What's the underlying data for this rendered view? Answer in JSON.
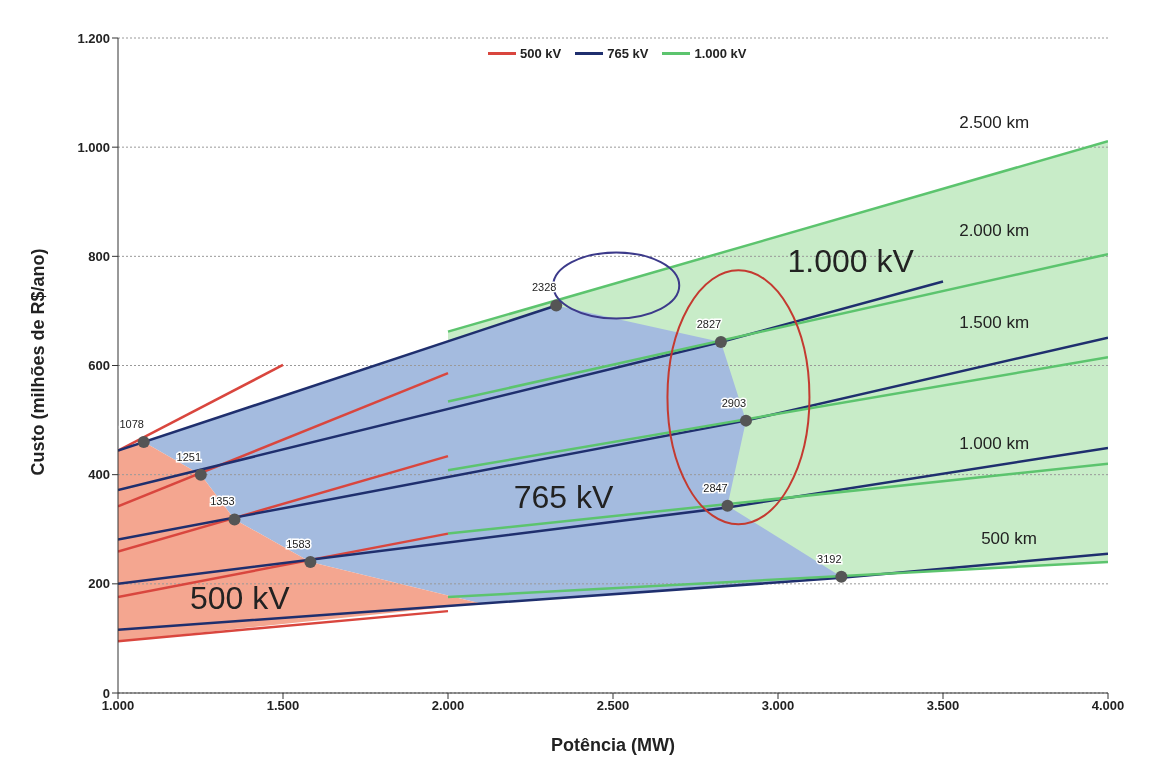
{
  "chart_data": {
    "type": "line",
    "xlabel": "Potência (MW)",
    "ylabel": "Custo (milhões de R$/ano)",
    "xlim": [
      1000,
      4000
    ],
    "xticks": [
      {
        "value": 1000,
        "label": "1.000"
      },
      {
        "value": 1500,
        "label": "1.500"
      },
      {
        "value": 2000,
        "label": "2.000"
      },
      {
        "value": 2500,
        "label": "2.500"
      },
      {
        "value": 3000,
        "label": "3.000"
      },
      {
        "value": 3500,
        "label": "3.500"
      },
      {
        "value": 4000,
        "label": "4.000"
      }
    ],
    "ylim": [
      0,
      1200
    ],
    "yticks": [
      0,
      200,
      400,
      600,
      800,
      {
        "value": 1000,
        "label": "1.000"
      },
      {
        "value": 1200,
        "label": "1.200"
      }
    ],
    "grid": "y",
    "legend": "top",
    "series": [
      {
        "name": "500 kV",
        "color": "#d9463e",
        "x": [
          1000,
          1500
        ],
        "values": [
          444,
          601
        ]
      },
      {
        "color": "#d9463e",
        "x": [
          1000,
          2000
        ],
        "values": [
          342,
          586
        ]
      },
      {
        "color": "#d9463e",
        "x": [
          1000,
          2000
        ],
        "values": [
          259,
          434
        ]
      },
      {
        "color": "#d9463e",
        "x": [
          1000,
          2000
        ],
        "values": [
          176,
          292
        ]
      },
      {
        "color": "#d9463e",
        "x": [
          1000,
          2000
        ],
        "values": [
          95,
          150
        ]
      },
      {
        "name": "765 kV",
        "color": "#1f2f6e",
        "x": [
          1000,
          2328
        ],
        "values": [
          444,
          710
        ]
      },
      {
        "color": "#1f2f6e",
        "x": [
          1000,
          2827,
          3500
        ],
        "values": [
          372,
          643,
          754
        ]
      },
      {
        "color": "#1f2f6e",
        "x": [
          1000,
          2903,
          4000
        ],
        "values": [
          281,
          499,
          651
        ]
      },
      {
        "color": "#1f2f6e",
        "x": [
          1000,
          2847,
          4000
        ],
        "values": [
          200,
          340,
          449
        ]
      },
      {
        "color": "#1f2f6e",
        "x": [
          1000,
          3192,
          4000
        ],
        "values": [
          116,
          211,
          255
        ]
      },
      {
        "name": "1.000 kV",
        "color": "#5cc46e",
        "x": [
          2000,
          4000
        ],
        "values": [
          662,
          1011
        ]
      },
      {
        "color": "#5cc46e",
        "x": [
          2000,
          4000
        ],
        "values": [
          534,
          804
        ]
      },
      {
        "color": "#5cc46e",
        "x": [
          2000,
          4000
        ],
        "values": [
          408,
          615
        ]
      },
      {
        "color": "#5cc46e",
        "x": [
          2000,
          4000
        ],
        "values": [
          292,
          420
        ]
      },
      {
        "color": "#5cc46e",
        "x": [
          2000,
          4000
        ],
        "values": [
          176,
          240
        ]
      },
      {
        "type": "scatter",
        "color": "#555555",
        "x": [
          1078,
          1251,
          1353,
          1583,
          2328,
          2827,
          2903,
          2847,
          3192
        ],
        "values": [
          460,
          400,
          318,
          240,
          710,
          643,
          499,
          343,
          213
        ]
      }
    ],
    "annotations": [
      "500 kV",
      "765 kV",
      "1.000 kV",
      "2.500 km",
      "2.000 km",
      "1.500 km",
      "1.000 km",
      "500 km",
      {
        "text": "1078",
        "x": 1078,
        "y": 460
      },
      {
        "text": "1251",
        "x": 1251,
        "y": 400
      },
      {
        "text": "1353",
        "x": 1353,
        "y": 318
      },
      {
        "text": "1583",
        "x": 1583,
        "y": 240
      },
      {
        "text": "2328",
        "x": 2328,
        "y": 710
      },
      {
        "text": "2827",
        "x": 2827,
        "y": 643
      },
      {
        "text": "2903",
        "x": 2903,
        "y": 499
      },
      {
        "text": "2847",
        "x": 2847,
        "y": 343
      },
      {
        "text": "3192",
        "x": 3192,
        "y": 213
      }
    ]
  }
}
